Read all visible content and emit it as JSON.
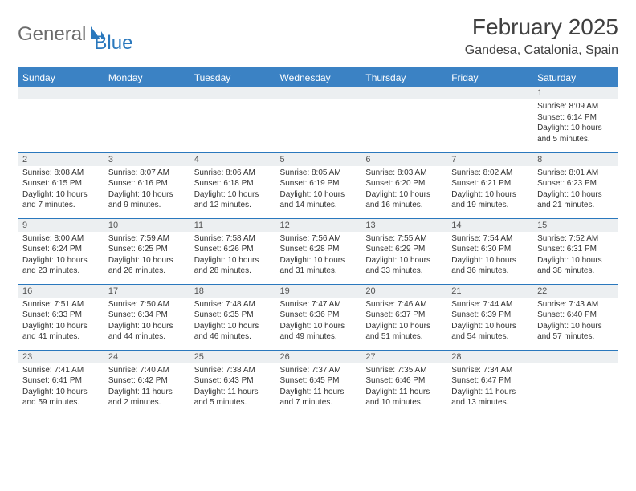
{
  "logo": {
    "part1": "General",
    "part2": "Blue"
  },
  "title": "February 2025",
  "location": "Gandesa, Catalonia, Spain",
  "header_bg": "#3b82c4",
  "rule_color": "#2a78bd",
  "daynum_bg": "#eceff1",
  "weekdays": [
    "Sunday",
    "Monday",
    "Tuesday",
    "Wednesday",
    "Thursday",
    "Friday",
    "Saturday"
  ],
  "weeks": [
    [
      null,
      null,
      null,
      null,
      null,
      null,
      {
        "n": "1",
        "sr": "8:09 AM",
        "ss": "6:14 PM",
        "dl": "10 hours and 5 minutes."
      }
    ],
    [
      {
        "n": "2",
        "sr": "8:08 AM",
        "ss": "6:15 PM",
        "dl": "10 hours and 7 minutes."
      },
      {
        "n": "3",
        "sr": "8:07 AM",
        "ss": "6:16 PM",
        "dl": "10 hours and 9 minutes."
      },
      {
        "n": "4",
        "sr": "8:06 AM",
        "ss": "6:18 PM",
        "dl": "10 hours and 12 minutes."
      },
      {
        "n": "5",
        "sr": "8:05 AM",
        "ss": "6:19 PM",
        "dl": "10 hours and 14 minutes."
      },
      {
        "n": "6",
        "sr": "8:03 AM",
        "ss": "6:20 PM",
        "dl": "10 hours and 16 minutes."
      },
      {
        "n": "7",
        "sr": "8:02 AM",
        "ss": "6:21 PM",
        "dl": "10 hours and 19 minutes."
      },
      {
        "n": "8",
        "sr": "8:01 AM",
        "ss": "6:23 PM",
        "dl": "10 hours and 21 minutes."
      }
    ],
    [
      {
        "n": "9",
        "sr": "8:00 AM",
        "ss": "6:24 PM",
        "dl": "10 hours and 23 minutes."
      },
      {
        "n": "10",
        "sr": "7:59 AM",
        "ss": "6:25 PM",
        "dl": "10 hours and 26 minutes."
      },
      {
        "n": "11",
        "sr": "7:58 AM",
        "ss": "6:26 PM",
        "dl": "10 hours and 28 minutes."
      },
      {
        "n": "12",
        "sr": "7:56 AM",
        "ss": "6:28 PM",
        "dl": "10 hours and 31 minutes."
      },
      {
        "n": "13",
        "sr": "7:55 AM",
        "ss": "6:29 PM",
        "dl": "10 hours and 33 minutes."
      },
      {
        "n": "14",
        "sr": "7:54 AM",
        "ss": "6:30 PM",
        "dl": "10 hours and 36 minutes."
      },
      {
        "n": "15",
        "sr": "7:52 AM",
        "ss": "6:31 PM",
        "dl": "10 hours and 38 minutes."
      }
    ],
    [
      {
        "n": "16",
        "sr": "7:51 AM",
        "ss": "6:33 PM",
        "dl": "10 hours and 41 minutes."
      },
      {
        "n": "17",
        "sr": "7:50 AM",
        "ss": "6:34 PM",
        "dl": "10 hours and 44 minutes."
      },
      {
        "n": "18",
        "sr": "7:48 AM",
        "ss": "6:35 PM",
        "dl": "10 hours and 46 minutes."
      },
      {
        "n": "19",
        "sr": "7:47 AM",
        "ss": "6:36 PM",
        "dl": "10 hours and 49 minutes."
      },
      {
        "n": "20",
        "sr": "7:46 AM",
        "ss": "6:37 PM",
        "dl": "10 hours and 51 minutes."
      },
      {
        "n": "21",
        "sr": "7:44 AM",
        "ss": "6:39 PM",
        "dl": "10 hours and 54 minutes."
      },
      {
        "n": "22",
        "sr": "7:43 AM",
        "ss": "6:40 PM",
        "dl": "10 hours and 57 minutes."
      }
    ],
    [
      {
        "n": "23",
        "sr": "7:41 AM",
        "ss": "6:41 PM",
        "dl": "10 hours and 59 minutes."
      },
      {
        "n": "24",
        "sr": "7:40 AM",
        "ss": "6:42 PM",
        "dl": "11 hours and 2 minutes."
      },
      {
        "n": "25",
        "sr": "7:38 AM",
        "ss": "6:43 PM",
        "dl": "11 hours and 5 minutes."
      },
      {
        "n": "26",
        "sr": "7:37 AM",
        "ss": "6:45 PM",
        "dl": "11 hours and 7 minutes."
      },
      {
        "n": "27",
        "sr": "7:35 AM",
        "ss": "6:46 PM",
        "dl": "11 hours and 10 minutes."
      },
      {
        "n": "28",
        "sr": "7:34 AM",
        "ss": "6:47 PM",
        "dl": "11 hours and 13 minutes."
      },
      null
    ]
  ],
  "labels": {
    "sunrise": "Sunrise:",
    "sunset": "Sunset:",
    "daylight": "Daylight:"
  }
}
